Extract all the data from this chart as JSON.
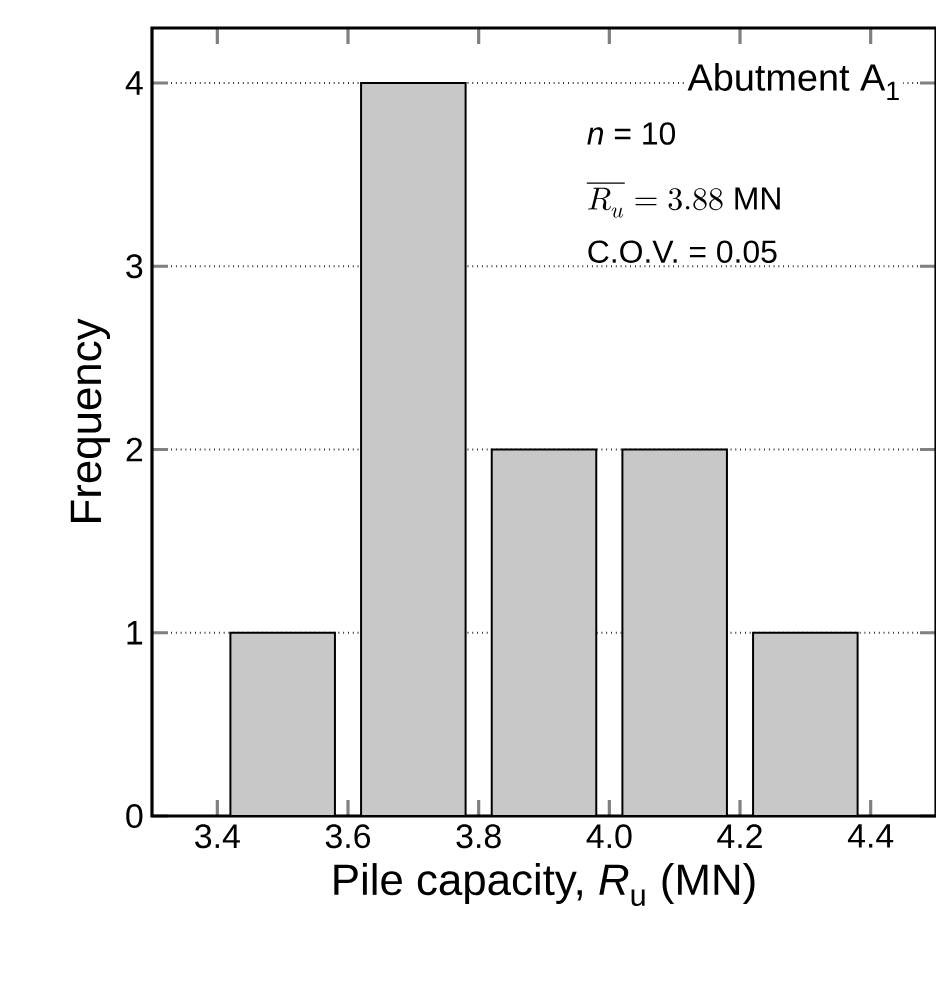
{
  "chart_data": {
    "type": "histogram",
    "xlabel": "Pile capacity, *R*$_{u}$ (MN)",
    "ylabel": "Frequency",
    "bins": [
      3.4,
      3.6,
      3.8,
      4.0,
      4.2,
      4.4
    ],
    "values": [
      1,
      4,
      2,
      2,
      1
    ],
    "color": "#c8c8c8",
    "xlim": [
      3.3,
      4.5
    ],
    "xticks": [
      {
        "value": 3.4,
        "label": "3.4"
      },
      {
        "value": 3.6,
        "label": "3.6"
      },
      {
        "value": 3.8,
        "label": "3.8"
      },
      {
        "value": 4.0,
        "label": "4.0"
      },
      {
        "value": 4.2,
        "label": "4.2"
      },
      {
        "value": 4.4,
        "label": "4.4"
      }
    ],
    "ylim": [
      0,
      4.3
    ],
    "yticks": [
      0,
      1,
      2,
      3,
      4
    ],
    "grid": "y",
    "annotations": [
      "Abutment A$_{1}$",
      "*n* = 10",
      "\\overline{R_u} = 3.88\\ \\mathrm{MN}",
      "C.O.V. = 0.05"
    ]
  }
}
